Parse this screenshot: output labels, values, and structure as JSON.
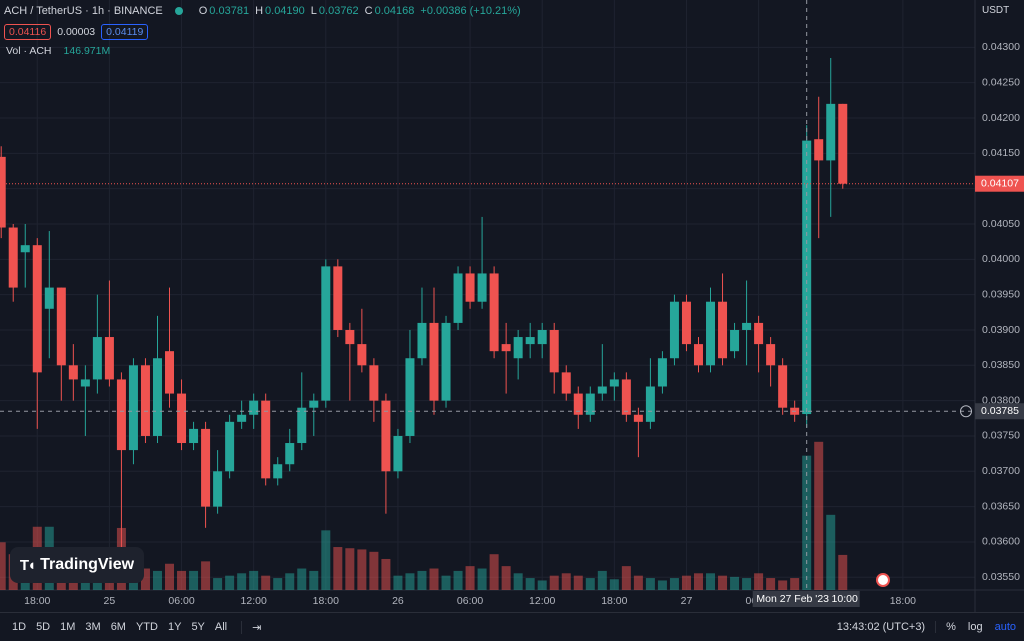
{
  "header": {
    "symbol": "ACH / TetherUS · 1h · BINANCE",
    "ohlc": [
      {
        "key": "O",
        "value": "0.03781"
      },
      {
        "key": "H",
        "value": "0.04190"
      },
      {
        "key": "L",
        "value": "0.03762"
      },
      {
        "key": "C",
        "value": "0.04168"
      }
    ],
    "change": "+0.00386 (+10.21%)",
    "bid": "0.04116",
    "spread": "0.00003",
    "ask": "0.04119",
    "vol_label": "Vol · ACH",
    "vol_value": "146.971M",
    "currency": "USDT"
  },
  "chart_data": {
    "type": "candlestick",
    "open": [
      0.04145,
      0.04045,
      0.0401,
      0.0402,
      0.0393,
      0.0396,
      0.0385,
      0.0382,
      0.0383,
      0.0389,
      0.0383,
      0.0373,
      0.0385,
      0.0375,
      0.0387,
      0.0381,
      0.0374,
      0.0376,
      0.0365,
      0.037,
      0.0377,
      0.0378,
      0.038,
      0.0369,
      0.0371,
      0.0374,
      0.0379,
      0.038,
      0.0399,
      0.039,
      0.0388,
      0.0385,
      0.038,
      0.037,
      0.0375,
      0.0386,
      0.0391,
      0.038,
      0.0391,
      0.0398,
      0.0394,
      0.0398,
      0.0388,
      0.0386,
      0.0388,
      0.0388,
      0.039,
      0.0384,
      0.0381,
      0.0378,
      0.0381,
      0.0382,
      0.0383,
      0.0378,
      0.0377,
      0.0382,
      0.0386,
      0.0394,
      0.0388,
      0.0385,
      0.0394,
      0.0387,
      0.039,
      0.0391,
      0.0388,
      0.0385,
      0.0379,
      0.03781,
      0.0417,
      0.0414,
      0.0422
    ],
    "high": [
      0.0416,
      0.0405,
      0.0405,
      0.0403,
      0.0404,
      0.0396,
      0.0388,
      0.0385,
      0.0395,
      0.0397,
      0.0384,
      0.0386,
      0.0386,
      0.0392,
      0.0396,
      0.0383,
      0.0377,
      0.0377,
      0.0373,
      0.0378,
      0.038,
      0.0381,
      0.0381,
      0.0372,
      0.0376,
      0.0384,
      0.0381,
      0.04,
      0.04,
      0.0391,
      0.0393,
      0.0386,
      0.0381,
      0.0376,
      0.039,
      0.0396,
      0.0396,
      0.0392,
      0.0399,
      0.0399,
      0.0406,
      0.0399,
      0.0391,
      0.039,
      0.0391,
      0.0391,
      0.0391,
      0.0385,
      0.0382,
      0.0382,
      0.0388,
      0.0384,
      0.0384,
      0.0379,
      0.0386,
      0.0387,
      0.0395,
      0.0395,
      0.0389,
      0.0396,
      0.0398,
      0.0391,
      0.0397,
      0.0392,
      0.0389,
      0.0386,
      0.038,
      0.0419,
      0.0423,
      0.04285,
      0.0422
    ],
    "low": [
      0.0403,
      0.0394,
      0.0396,
      0.0376,
      0.0386,
      0.038,
      0.038,
      0.0375,
      0.0381,
      0.0382,
      0.0359,
      0.0371,
      0.0374,
      0.0374,
      0.0379,
      0.0373,
      0.0373,
      0.0362,
      0.0364,
      0.0369,
      0.0376,
      0.0376,
      0.0368,
      0.0368,
      0.037,
      0.0373,
      0.0375,
      0.0379,
      0.0389,
      0.038,
      0.0384,
      0.0377,
      0.0364,
      0.0369,
      0.0374,
      0.0385,
      0.0378,
      0.0379,
      0.039,
      0.0393,
      0.0393,
      0.0386,
      0.0381,
      0.0383,
      0.0386,
      0.0386,
      0.0381,
      0.038,
      0.0376,
      0.0377,
      0.038,
      0.038,
      0.0377,
      0.0372,
      0.0376,
      0.0381,
      0.0385,
      0.0387,
      0.0384,
      0.0384,
      0.0385,
      0.0386,
      0.0385,
      0.0384,
      0.0382,
      0.0378,
      0.0377,
      0.03762,
      0.0403,
      0.0406,
      0.041
    ],
    "close": [
      0.04045,
      0.0396,
      0.0402,
      0.0384,
      0.0396,
      0.0385,
      0.0383,
      0.0383,
      0.0389,
      0.0383,
      0.0373,
      0.0385,
      0.0375,
      0.0386,
      0.0381,
      0.0374,
      0.0376,
      0.0365,
      0.037,
      0.0377,
      0.0378,
      0.038,
      0.0369,
      0.0371,
      0.0374,
      0.0379,
      0.038,
      0.0399,
      0.039,
      0.0388,
      0.0385,
      0.038,
      0.037,
      0.0375,
      0.0386,
      0.0391,
      0.038,
      0.0391,
      0.0398,
      0.0394,
      0.0398,
      0.0387,
      0.0387,
      0.0389,
      0.0389,
      0.039,
      0.0384,
      0.0381,
      0.0378,
      0.0381,
      0.0382,
      0.0383,
      0.0378,
      0.0377,
      0.0382,
      0.0386,
      0.0394,
      0.0388,
      0.0385,
      0.0394,
      0.0386,
      0.039,
      0.0391,
      0.0388,
      0.0385,
      0.0379,
      0.0378,
      0.04168,
      0.0414,
      0.0422,
      0.04107
    ],
    "volume": [
      200,
      150,
      110,
      265,
      265,
      130,
      110,
      110,
      140,
      140,
      260,
      110,
      90,
      80,
      110,
      80,
      80,
      120,
      50,
      60,
      70,
      80,
      60,
      50,
      70,
      90,
      80,
      250,
      180,
      175,
      170,
      160,
      130,
      60,
      70,
      80,
      90,
      60,
      80,
      100,
      90,
      150,
      100,
      70,
      50,
      40,
      60,
      70,
      60,
      50,
      80,
      45,
      100,
      60,
      50,
      40,
      50,
      60,
      70,
      70,
      60,
      55,
      50,
      70,
      50,
      40,
      50,
      563,
      621,
      315,
      147
    ],
    "up_color": "#26a69a",
    "down_color": "#ef5350",
    "xlim": [
      -0.1,
      81
    ],
    "ylim": [
      0.03532,
      0.04367
    ],
    "volume_lim": [
      0,
      880
    ],
    "yticks": [
      {
        "value": 0.043,
        "label": "0.04300"
      },
      {
        "value": 0.0425,
        "label": "0.04250"
      },
      {
        "value": 0.042,
        "label": "0.04200"
      },
      {
        "value": 0.0415,
        "label": "0.04150"
      },
      {
        "value": 0.041,
        "label": "0.04100"
      },
      {
        "value": 0.0405,
        "label": "0.04050"
      },
      {
        "value": 0.04,
        "label": "0.04000"
      },
      {
        "value": 0.0395,
        "label": "0.03950"
      },
      {
        "value": 0.039,
        "label": "0.03900"
      },
      {
        "value": 0.0385,
        "label": "0.03850"
      },
      {
        "value": 0.038,
        "label": "0.03800"
      },
      {
        "value": 0.0375,
        "label": "0.03750"
      },
      {
        "value": 0.037,
        "label": "0.03700"
      },
      {
        "value": 0.0365,
        "label": "0.03650"
      },
      {
        "value": 0.036,
        "label": "0.03600"
      },
      {
        "value": 0.0355,
        "label": "0.03550"
      }
    ],
    "xticks": [
      {
        "value": 3,
        "label": "18:00"
      },
      {
        "value": 9,
        "label": "25"
      },
      {
        "value": 15,
        "label": "06:00"
      },
      {
        "value": 21,
        "label": "12:00"
      },
      {
        "value": 27,
        "label": "18:00"
      },
      {
        "value": 33,
        "label": "26"
      },
      {
        "value": 39,
        "label": "06:00"
      },
      {
        "value": 45,
        "label": "12:00"
      },
      {
        "value": 51,
        "label": "18:00"
      },
      {
        "value": 57,
        "label": "27"
      },
      {
        "value": 63,
        "label": "06:00"
      },
      {
        "value": 75,
        "label": "18:00"
      }
    ],
    "grid": true,
    "last_price": 0.04107,
    "crosshair": {
      "index": 67,
      "price": 0.03785,
      "date_label": "Mon 27 Feb '23",
      "time_label": "10:00"
    }
  },
  "toolbar": {
    "ranges": [
      "1D",
      "5D",
      "1M",
      "3M",
      "6M",
      "YTD",
      "1Y",
      "5Y",
      "All"
    ],
    "clock": "13:43:02 (UTC+3)",
    "options": [
      "%",
      "log",
      "auto"
    ]
  },
  "logo": "TradingView"
}
